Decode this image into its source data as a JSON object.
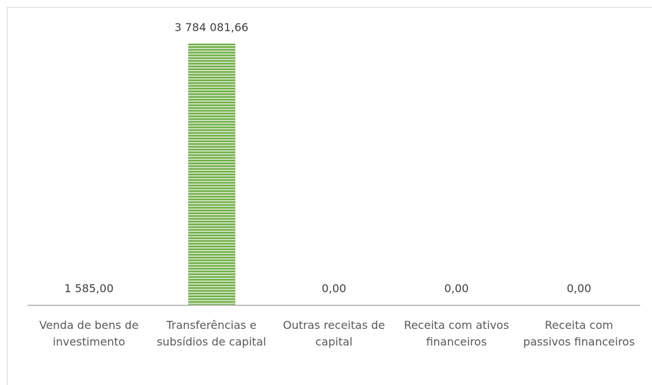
{
  "chart_data": {
    "type": "bar",
    "categories": [
      "Venda de bens de investimento",
      "Transferências e subsídios de capital",
      "Outras receitas de capital",
      "Receita com ativos financeiros",
      "Receita com passivos financeiros"
    ],
    "values": [
      1585,
      3784081.66,
      0,
      0,
      0
    ],
    "value_labels": [
      "1 585,00",
      "3 784 081,66",
      "0,00",
      "0,00",
      "0,00"
    ],
    "ylim": [
      0,
      4000000
    ]
  }
}
